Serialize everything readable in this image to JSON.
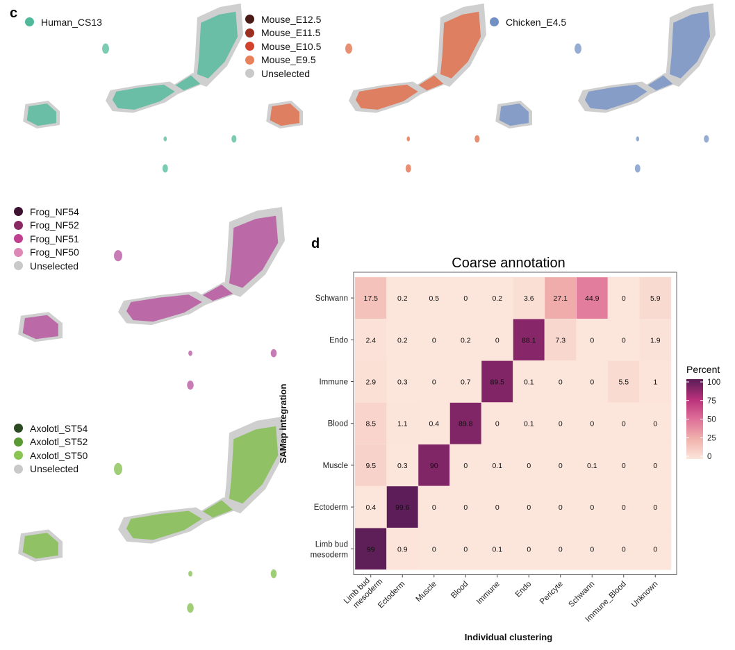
{
  "panel_c": {
    "letter": "c",
    "umaps": [
      {
        "legend": [
          {
            "label": "Human_CS13",
            "color": "#4fb99a"
          }
        ],
        "highlight": "#4fb99a"
      },
      {
        "legend": [
          {
            "label": "Mouse_E12.5",
            "color": "#4a1a17"
          },
          {
            "label": "Mouse_E11.5",
            "color": "#9b2f22"
          },
          {
            "label": "Mouse_E10.5",
            "color": "#d2432e"
          },
          {
            "label": "Mouse_E9.5",
            "color": "#e8805a"
          },
          {
            "label": "Unselected",
            "color": "#c9c9c9"
          }
        ],
        "highlight": "#e06a44"
      },
      {
        "legend": [
          {
            "label": "Chicken_E4.5",
            "color": "#7290c4"
          }
        ],
        "highlight": "#7290c4"
      },
      {
        "legend": [
          {
            "label": "Frog_NF54",
            "color": "#3c1230"
          },
          {
            "label": "Frog_NF52",
            "color": "#8a2a64"
          },
          {
            "label": "Frog_NF51",
            "color": "#c0408f"
          },
          {
            "label": "Frog_NF50",
            "color": "#de88b8"
          },
          {
            "label": "Unselected",
            "color": "#c9c9c9"
          }
        ],
        "highlight": "#b5509c"
      },
      {
        "legend": [
          {
            "label": "Axolotl_ST54",
            "color": "#2c4a22"
          },
          {
            "label": "Axolotl_ST52",
            "color": "#5a9a35"
          },
          {
            "label": "Axolotl_ST50",
            "color": "#8ac453"
          },
          {
            "label": "Unselected",
            "color": "#c9c9c9"
          }
        ],
        "highlight": "#7fbe4a"
      }
    ]
  },
  "panel_d": {
    "letter": "d"
  },
  "chart_data": {
    "type": "heatmap",
    "title": "Coarse annotation",
    "xlabel": "Individual clustering",
    "ylabel": "SAMap integration",
    "x_categories": [
      "Limb bud\nmesoderm",
      "Ectoderm",
      "Muscle",
      "Blood",
      "Immune",
      "Endo",
      "Pericyte",
      "Schwann",
      "Immune_Blood",
      "Unknown"
    ],
    "y_categories": [
      "Schwann",
      "Endo",
      "Immune",
      "Blood",
      "Muscle",
      "Ectoderm",
      "Limb bud\nmesoderm"
    ],
    "values": [
      [
        17.5,
        0.2,
        0.5,
        0,
        0.2,
        3.6,
        27.1,
        44.9,
        0,
        5.9
      ],
      [
        2.4,
        0.2,
        0,
        0.2,
        0,
        88.1,
        7.3,
        0,
        0,
        1.9
      ],
      [
        2.9,
        0.3,
        0,
        0.7,
        89.5,
        0.1,
        0,
        0,
        5.5,
        1
      ],
      [
        8.5,
        1.1,
        0.4,
        89.8,
        0,
        0.1,
        0,
        0,
        0,
        0
      ],
      [
        9.5,
        0.3,
        90,
        0,
        0.1,
        0,
        0,
        0.1,
        0,
        0
      ],
      [
        0.4,
        99.6,
        0,
        0,
        0,
        0,
        0,
        0,
        0,
        0
      ],
      [
        99,
        0.9,
        0,
        0,
        0.1,
        0,
        0,
        0,
        0,
        0
      ]
    ],
    "colorbar": {
      "title": "Percent",
      "ticks": [
        0,
        25,
        50,
        75,
        100
      ],
      "range": [
        0,
        100
      ],
      "colors": [
        "#fce6dc",
        "#f0b2ac",
        "#df7099",
        "#b8307a",
        "#5a1d57"
      ]
    }
  }
}
